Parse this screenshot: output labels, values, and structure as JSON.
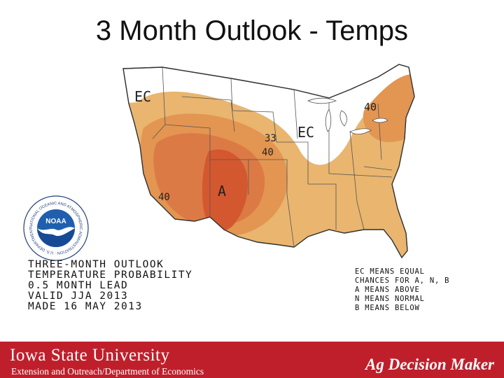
{
  "slide": {
    "title": "3 Month Outlook - Temps"
  },
  "map": {
    "region_labels": {
      "ec_northwest": "EC",
      "ec_midwest": "EC",
      "p40_northeast": "40",
      "p33_central": "33",
      "p40_central": "40",
      "p40_southwest": "40",
      "a_south_central": "A"
    },
    "info_lines": [
      "THREE-MONTH OUTLOOK",
      "TEMPERATURE PROBABILITY",
      "0.5 MONTH LEAD",
      "VALID JJA 2013",
      "MADE 16 MAY 2013"
    ],
    "legend_lines": [
      "EC MEANS EQUAL",
      "CHANCES FOR A, N, B",
      "A MEANS ABOVE",
      "N MEANS NORMAL",
      "B MEANS BELOW"
    ],
    "colors": {
      "p33": "#e9b56f",
      "p40": "#e39552",
      "p50": "#dc7a45",
      "p60": "#d4582f",
      "ec": "#ffffff",
      "borders": "#333333"
    }
  },
  "logo": {
    "name": "NOAA",
    "ring_text": "NATIONAL OCEANIC AND ATMOSPHERIC ADMINISTRATION · U.S. DEPARTMENT OF COMMERCE"
  },
  "footer": {
    "university": "Iowa State University",
    "department": "Extension and Outreach/Department of Economics",
    "brand": "Ag Decision Maker",
    "background_color": "#bf1f2b"
  }
}
